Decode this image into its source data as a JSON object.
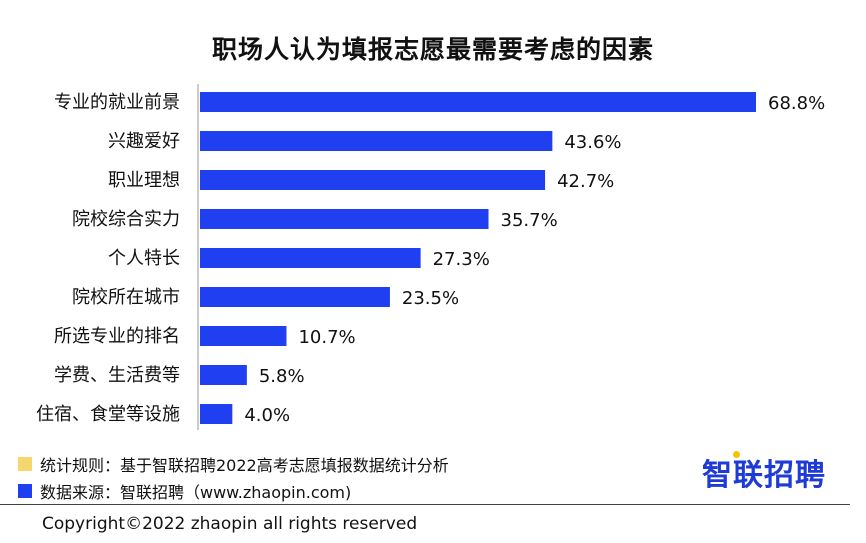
{
  "chart_data": {
    "type": "bar",
    "orientation": "horizontal",
    "title": "职场人认为填报志愿最需要考虑的因素",
    "categories": [
      "专业的就业前景",
      "兴趣爱好",
      "职业理想",
      "院校综合实力",
      "个人特长",
      "院校所在城市",
      "所选专业的排名",
      "学费、生活费等",
      "住宿、食堂等设施"
    ],
    "values": [
      68.8,
      43.6,
      42.7,
      35.7,
      27.3,
      23.5,
      10.7,
      5.8,
      4.0
    ],
    "value_labels": [
      "68.8%",
      "43.6%",
      "42.7%",
      "35.7%",
      "27.3%",
      "23.5%",
      "10.7%",
      "5.8%",
      "4.0%"
    ],
    "unit": "%",
    "xlim": [
      0,
      70
    ],
    "grid": false,
    "bar_color": "#1f3ff0"
  },
  "legend": [
    {
      "label": "统计规则：基于智联招聘2022高考志愿填报数据统计分析",
      "color": "#f5d76e"
    },
    {
      "label": "数据来源：智联招聘（www.zhaopin.com)",
      "color": "#1f3ff0"
    }
  ],
  "logo_text": "智联招聘",
  "copyright": "Copyright©2022 zhaopin all rights reserved"
}
